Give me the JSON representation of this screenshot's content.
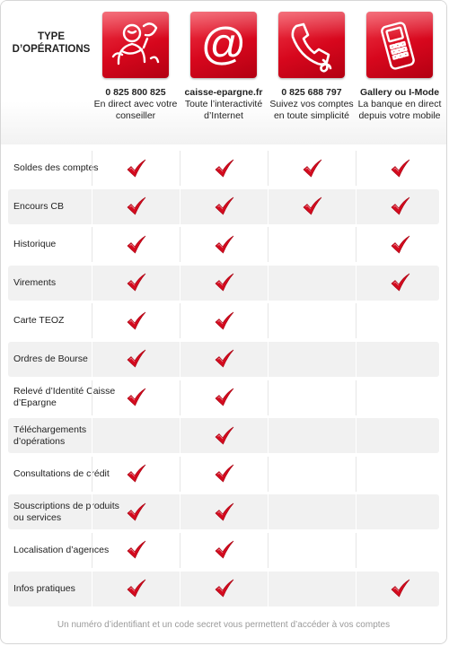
{
  "header": {
    "type_title_line1": "TYPE",
    "type_title_line2": "D’OPÉRATIONS"
  },
  "channels": [
    {
      "icon": "advisor-person-icon",
      "title": "0 825 800 825",
      "desc": "En direct avec votre conseiller"
    },
    {
      "icon": "at-sign-icon",
      "title": "caisse-epargne.fr",
      "desc": "Toute l’interactivité d’Internet"
    },
    {
      "icon": "telephone-icon",
      "title": "0 825 688 797",
      "desc": "Suivez vos comptes en toute simplicité"
    },
    {
      "icon": "mobile-phone-icon",
      "title": "Gallery ou I-Mode",
      "desc": "La banque en direct depuis votre mobile"
    }
  ],
  "operations": [
    {
      "label": "Soldes des comptes",
      "checks": [
        true,
        true,
        true,
        true
      ]
    },
    {
      "label": "Encours CB",
      "checks": [
        true,
        true,
        true,
        true
      ]
    },
    {
      "label": "Historique",
      "checks": [
        true,
        true,
        false,
        true
      ]
    },
    {
      "label": "Virements",
      "checks": [
        true,
        true,
        false,
        true
      ]
    },
    {
      "label": "Carte TEOZ",
      "checks": [
        true,
        true,
        false,
        false
      ]
    },
    {
      "label": "Ordres de Bourse",
      "checks": [
        true,
        true,
        false,
        false
      ]
    },
    {
      "label": "Relevé d’Identité Caisse d’Epargne",
      "checks": [
        true,
        true,
        false,
        false
      ]
    },
    {
      "label": "Téléchargements d’opérations",
      "checks": [
        false,
        true,
        false,
        false
      ]
    },
    {
      "label": "Consultations de crédit",
      "checks": [
        true,
        true,
        false,
        false
      ]
    },
    {
      "label": "Souscriptions de produits ou services",
      "checks": [
        true,
        true,
        false,
        false
      ]
    },
    {
      "label": "Localisation d’agences",
      "checks": [
        true,
        true,
        false,
        false
      ]
    },
    {
      "label": "Infos pratiques",
      "checks": [
        true,
        true,
        false,
        true
      ]
    }
  ],
  "footer": {
    "note": "Un numéro d’identifiant et un code secret vous permettent d’accéder à vos comptes"
  },
  "colors": {
    "brand_red": "#d7071d",
    "check_red": "#d40b1f",
    "row_shade": "#f1f1f1"
  }
}
